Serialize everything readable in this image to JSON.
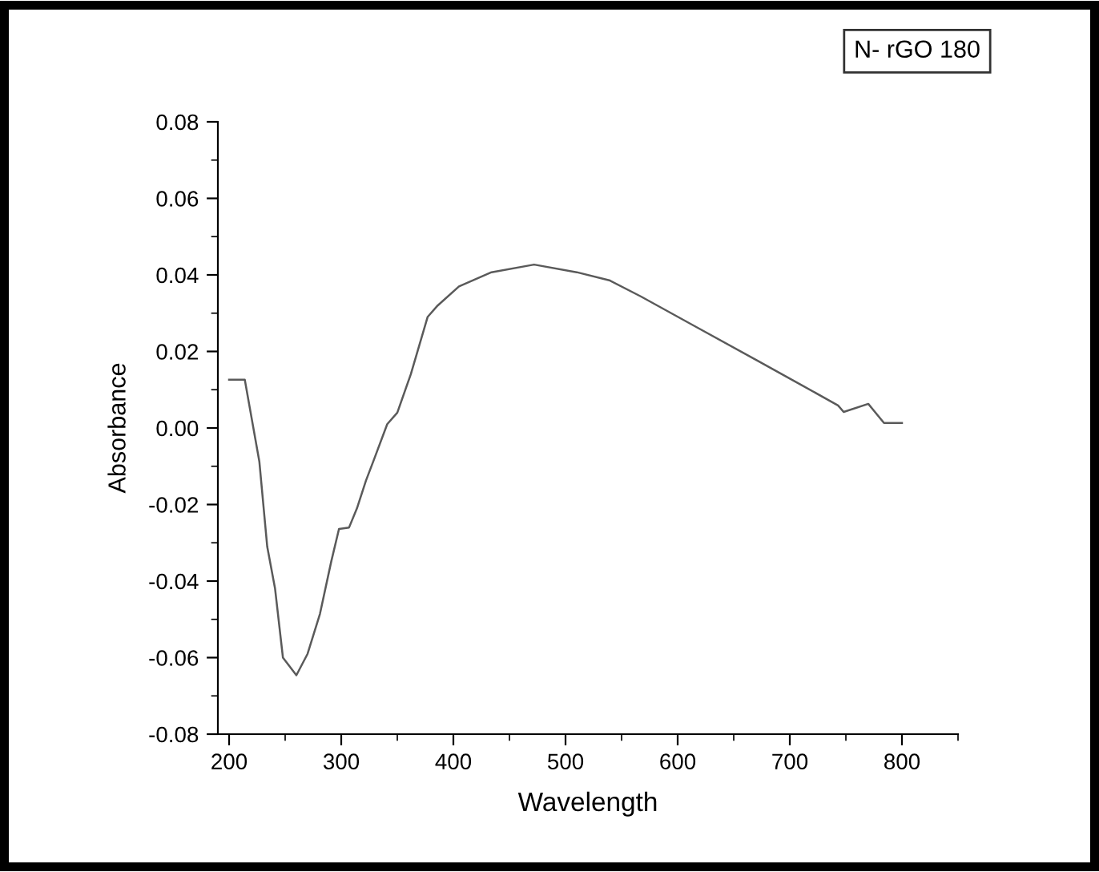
{
  "chart_data": {
    "type": "line",
    "xlabel": "Wavelength",
    "ylabel": "Absorbance",
    "legend": "top right",
    "xlim": [
      190,
      850
    ],
    "xticks": [
      200,
      300,
      400,
      500,
      600,
      700,
      800
    ],
    "ylim": [
      -0.08,
      0.08
    ],
    "yticks": [
      {
        "value": -0.08,
        "label": "-0.08"
      },
      {
        "value": -0.06,
        "label": "-0.06"
      },
      {
        "value": -0.04,
        "label": "-0.04"
      },
      {
        "value": -0.02,
        "label": "-0.02"
      },
      {
        "value": 0.0,
        "label": "0.00"
      },
      {
        "value": 0.02,
        "label": "0.02"
      },
      {
        "value": 0.04,
        "label": "0.04"
      },
      {
        "value": 0.06,
        "label": "0.06"
      },
      {
        "value": 0.08,
        "label": "0.08"
      }
    ],
    "grid": false,
    "marker": "none",
    "line_style": "solid",
    "series": [
      {
        "name": "N- rGO 180",
        "color": "#5a5a5a",
        "x": [
          200,
          214,
          227,
          234,
          241,
          248,
          260,
          270,
          281,
          291,
          298,
          307,
          314,
          322,
          329,
          341,
          350,
          362,
          377,
          386,
          405,
          434,
          472,
          510,
          539,
          567,
          614,
          671,
          710,
          743,
          748,
          770,
          784,
          800
        ],
        "values": [
          0.0126,
          0.0126,
          -0.0088,
          -0.031,
          -0.042,
          -0.06,
          -0.0646,
          -0.059,
          -0.0486,
          -0.035,
          -0.0264,
          -0.026,
          -0.021,
          -0.0138,
          -0.0084,
          0.001,
          0.004,
          0.014,
          0.029,
          0.032,
          0.037,
          0.0407,
          0.0427,
          0.0407,
          0.0386,
          0.0344,
          0.0268,
          0.0176,
          0.0113,
          0.0059,
          0.0042,
          0.0063,
          0.0013,
          0.0013
        ]
      }
    ]
  }
}
